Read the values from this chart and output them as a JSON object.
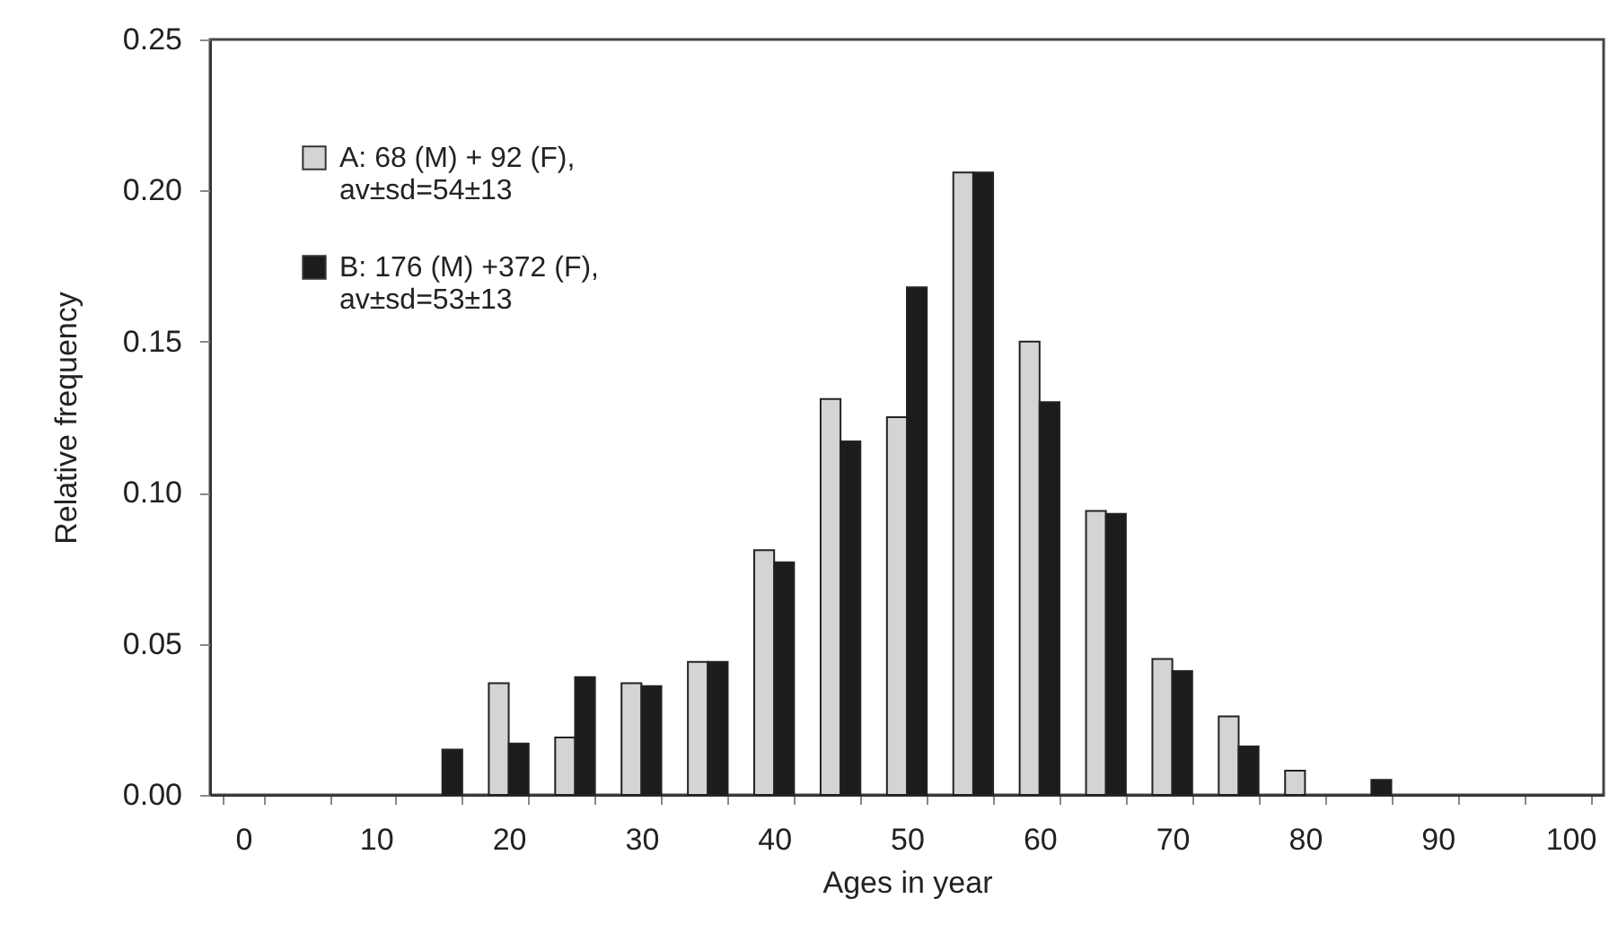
{
  "chart_data": {
    "type": "bar",
    "xlabel": "Ages in year",
    "ylabel": "Relative frequency",
    "categories": [
      "0",
      null,
      "10",
      null,
      "20",
      null,
      "30",
      null,
      "40",
      null,
      "50",
      null,
      "60",
      null,
      "70",
      null,
      "80",
      null,
      "90",
      null,
      "100"
    ],
    "series": [
      {
        "name": "A:   68 (M) + 92 (F),\nav±sd=54±13",
        "color": "#d4d4d4",
        "values": [
          0,
          0,
          0,
          0,
          0.037,
          0.019,
          0.037,
          0.044,
          0.081,
          0.131,
          0.125,
          0.206,
          0.15,
          0.094,
          0.045,
          0.026,
          0.008,
          0,
          0,
          0,
          0
        ]
      },
      {
        "name": "B:  176 (M) +372 (F),\nav±sd=53±13",
        "color": "#1c1c1c",
        "values": [
          0,
          0,
          0,
          0.015,
          0.017,
          0.039,
          0.036,
          0.044,
          0.077,
          0.117,
          0.168,
          0.206,
          0.13,
          0.093,
          0.041,
          0.016,
          0,
          0.005,
          0,
          0,
          0
        ]
      }
    ],
    "ylim": [
      0,
      0.25
    ],
    "yticks": [
      {
        "value": 0,
        "label": "0.00"
      },
      {
        "value": 0.05,
        "label": "0.05"
      },
      {
        "value": 0.1,
        "label": "0.10"
      },
      {
        "value": 0.15,
        "label": "0.15"
      },
      {
        "value": 0.2,
        "label": "0.20"
      },
      {
        "value": 0.25,
        "label": "0.25"
      }
    ],
    "legend": "top left",
    "grid": false
  }
}
